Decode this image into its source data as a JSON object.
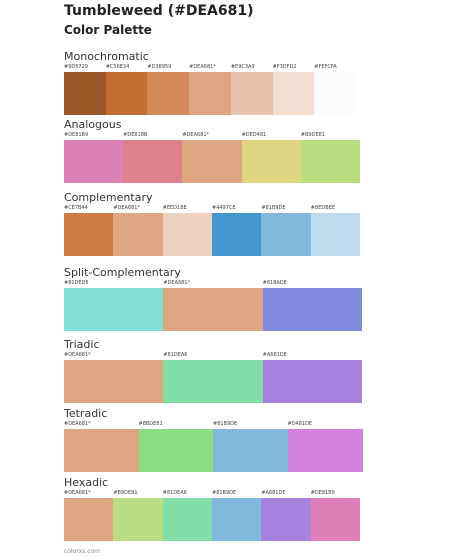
{
  "header": {
    "title": "Tumbleweed (#DEA681)",
    "subtitle": "Color Palette"
  },
  "sections": [
    {
      "name": "Monochromatic",
      "swatches": [
        {
          "label": "#9D5729",
          "color": "#9D5729"
        },
        {
          "label": "#C56E34",
          "color": "#C56E34"
        },
        {
          "label": "#D38959",
          "color": "#D38959"
        },
        {
          "label": "#DEA681*",
          "color": "#DEA681"
        },
        {
          "label": "#E9C3A9",
          "color": "#E9C3A9"
        },
        {
          "label": "#F3DFD2",
          "color": "#F3DFD2"
        },
        {
          "label": "#FEFCFA",
          "color": "#FEFCFA"
        }
      ]
    },
    {
      "name": "Analogous",
      "swatches": [
        {
          "label": "#DE81B9",
          "color": "#DE81B9"
        },
        {
          "label": "#DE818B",
          "color": "#DE818B"
        },
        {
          "label": "#DEA681*",
          "color": "#DEA681"
        },
        {
          "label": "#DED481",
          "color": "#DED481"
        },
        {
          "label": "#B9DE81",
          "color": "#B9DE81"
        }
      ]
    },
    {
      "name": "Complementary",
      "swatches": [
        {
          "label": "#CE7B44",
          "color": "#CE7B44"
        },
        {
          "label": "#DEA681*",
          "color": "#DEA681"
        },
        {
          "label": "#EED1BE",
          "color": "#EED1BE"
        },
        {
          "label": "#4497CE",
          "color": "#4497CE"
        },
        {
          "label": "#81B9DE",
          "color": "#81B9DE"
        },
        {
          "label": "#BEDBEE",
          "color": "#BEDBEE"
        }
      ]
    },
    {
      "name": "Split-Complementary",
      "swatches": [
        {
          "label": "#81DED5",
          "color": "#81DED5"
        },
        {
          "label": "#DEA681*",
          "color": "#DEA681"
        },
        {
          "label": "#818ADE",
          "color": "#818ADE"
        }
      ]
    },
    {
      "name": "Triadic",
      "swatches": [
        {
          "label": "#DEA681*",
          "color": "#DEA681"
        },
        {
          "label": "#81DEA6",
          "color": "#81DEA6"
        },
        {
          "label": "#A681DE",
          "color": "#A681DE"
        }
      ]
    },
    {
      "name": "Tetradic",
      "swatches": [
        {
          "label": "#DEA681*",
          "color": "#DEA681"
        },
        {
          "label": "#8BDE81",
          "color": "#8BDE81"
        },
        {
          "label": "#81B9DE",
          "color": "#81B9DE"
        },
        {
          "label": "#D481DE",
          "color": "#D481DE"
        }
      ]
    },
    {
      "name": "Hexadic",
      "swatches": [
        {
          "label": "#DEA681*",
          "color": "#DEA681"
        },
        {
          "label": "#B9DE81",
          "color": "#B9DE81"
        },
        {
          "label": "#81DEA6",
          "color": "#81DEA6"
        },
        {
          "label": "#81B9DE",
          "color": "#81B9DE"
        },
        {
          "label": "#A681DE",
          "color": "#A681DE"
        },
        {
          "label": "#DE81B9",
          "color": "#DE81B9"
        }
      ]
    }
  ],
  "footer": "colorxs.com"
}
